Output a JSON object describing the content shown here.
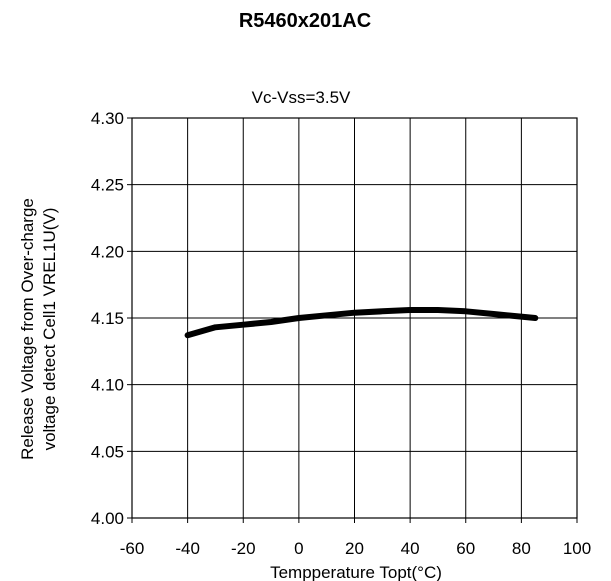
{
  "chart_data": {
    "type": "line",
    "title": "R5460x201AC",
    "subtitle": "Vc-Vss=3.5V",
    "xlabel": "Tempperature Topt(°C)",
    "ylabel_line1": "Release Voltage from Over-charge",
    "ylabel_line2": "voltage detect Cell1 VREL1U(V)",
    "xlim": [
      -60,
      100
    ],
    "ylim": [
      4.0,
      4.3
    ],
    "x_ticks": [
      "-60",
      "-40",
      "-20",
      "0",
      "20",
      "40",
      "60",
      "80",
      "100"
    ],
    "y_ticks": [
      "4.00",
      "4.05",
      "4.10",
      "4.15",
      "4.20",
      "4.25",
      "4.30"
    ],
    "grid": true,
    "series": [
      {
        "x": [
          -40,
          -35,
          -30,
          -20,
          -10,
          0,
          10,
          20,
          30,
          40,
          50,
          60,
          70,
          85
        ],
        "y": [
          4.137,
          4.14,
          4.143,
          4.145,
          4.147,
          4.15,
          4.152,
          4.154,
          4.155,
          4.156,
          4.156,
          4.155,
          4.153,
          4.15
        ],
        "color": "#000000"
      }
    ]
  }
}
